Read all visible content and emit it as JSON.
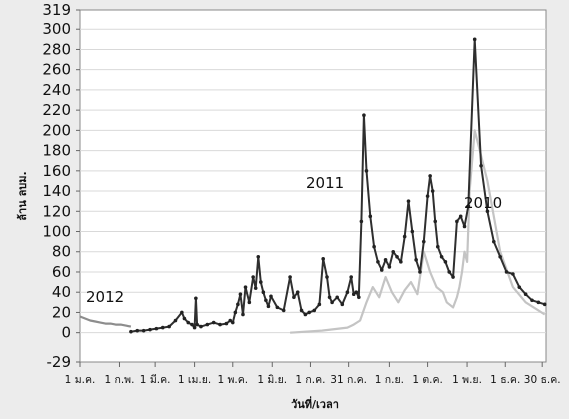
{
  "chart_data": {
    "type": "line",
    "title": "",
    "ylabel": "ล้าน ลบม.",
    "xlabel": "วันที่/เวลา",
    "ylim": [
      -29,
      319
    ],
    "y_ticks": [
      319,
      300,
      280,
      260,
      240,
      220,
      200,
      180,
      160,
      140,
      120,
      100,
      80,
      60,
      40,
      20,
      0,
      -29
    ],
    "x_ticks": [
      "1 ม.ค.",
      "1 ก.พ.",
      "1 มี.ค.",
      "1 เม.ย.",
      "1 พ.ค.",
      "1 มิ.ย.",
      "1 ก.ค.",
      "31 ก.ค.",
      "1 ก.ย.",
      "1 ต.ค.",
      "1 พ.ย.",
      "1 ธ.ค.",
      "30 ธ.ค."
    ],
    "x_tick_days": [
      0,
      31,
      59,
      90,
      120,
      151,
      181,
      211,
      243,
      273,
      304,
      334,
      363
    ],
    "grid": true,
    "legend": "none",
    "annotations": [
      "2012",
      "2011",
      "2010"
    ],
    "series": [
      {
        "name": "2011",
        "color": "#2f2f2f",
        "x": [
          0,
          25,
          40,
          45,
          50,
          55,
          60,
          65,
          70,
          75,
          80,
          82,
          85,
          88,
          90,
          91,
          92,
          95,
          100,
          105,
          110,
          115,
          118,
          120,
          122,
          124,
          126,
          128,
          130,
          133,
          136,
          138,
          140,
          142,
          144,
          146,
          148,
          150,
          155,
          160,
          165,
          168,
          171,
          174,
          177,
          180,
          184,
          188,
          191,
          194,
          196,
          198,
          202,
          206,
          210,
          213,
          215,
          217,
          219,
          221,
          223,
          225,
          228,
          231,
          234,
          237,
          240,
          243,
          246,
          249,
          252,
          255,
          258,
          261,
          264,
          267,
          270,
          273,
          275,
          277,
          279,
          281,
          284,
          287,
          290,
          293,
          296,
          299,
          302,
          305,
          310,
          315,
          320,
          325,
          330,
          335,
          340,
          345,
          350,
          355,
          360,
          365
        ],
        "y": [
          null,
          null,
          1,
          2,
          2,
          3,
          4,
          5,
          6,
          12,
          20,
          14,
          10,
          8,
          5,
          34,
          8,
          6,
          8,
          10,
          8,
          9,
          12,
          10,
          20,
          28,
          38,
          18,
          45,
          30,
          55,
          44,
          75,
          50,
          40,
          32,
          26,
          36,
          25,
          22,
          55,
          35,
          40,
          22,
          18,
          20,
          22,
          28,
          73,
          55,
          35,
          30,
          35,
          28,
          40,
          55,
          38,
          40,
          35,
          110,
          215,
          160,
          115,
          85,
          70,
          62,
          72,
          65,
          80,
          75,
          70,
          95,
          130,
          100,
          72,
          60,
          90,
          135,
          155,
          140,
          110,
          85,
          75,
          70,
          60,
          55,
          110,
          115,
          105,
          125,
          290,
          165,
          120,
          90,
          75,
          60,
          58,
          45,
          38,
          32,
          30,
          28
        ]
      },
      {
        "name": "2010",
        "color": "#c4c4c4",
        "x": [
          165,
          190,
          210,
          215,
          220,
          225,
          230,
          235,
          240,
          245,
          250,
          255,
          260,
          265,
          270,
          275,
          280,
          285,
          288,
          290,
          293,
          296,
          298,
          300,
          302,
          304,
          306,
          310,
          320,
          330,
          340,
          350,
          360,
          365
        ],
        "y": [
          0,
          2,
          5,
          8,
          12,
          30,
          45,
          35,
          55,
          40,
          30,
          42,
          50,
          38,
          80,
          60,
          45,
          40,
          30,
          28,
          25,
          35,
          45,
          60,
          80,
          70,
          140,
          200,
          150,
          80,
          45,
          30,
          22,
          18
        ]
      },
      {
        "name": "2012",
        "color": "#8d8d8d",
        "x": [
          0,
          4,
          8,
          12,
          16,
          20,
          24,
          28,
          32,
          36,
          40
        ],
        "y": [
          16,
          14,
          12,
          11,
          10,
          9,
          9,
          8,
          8,
          7,
          6
        ]
      }
    ]
  }
}
